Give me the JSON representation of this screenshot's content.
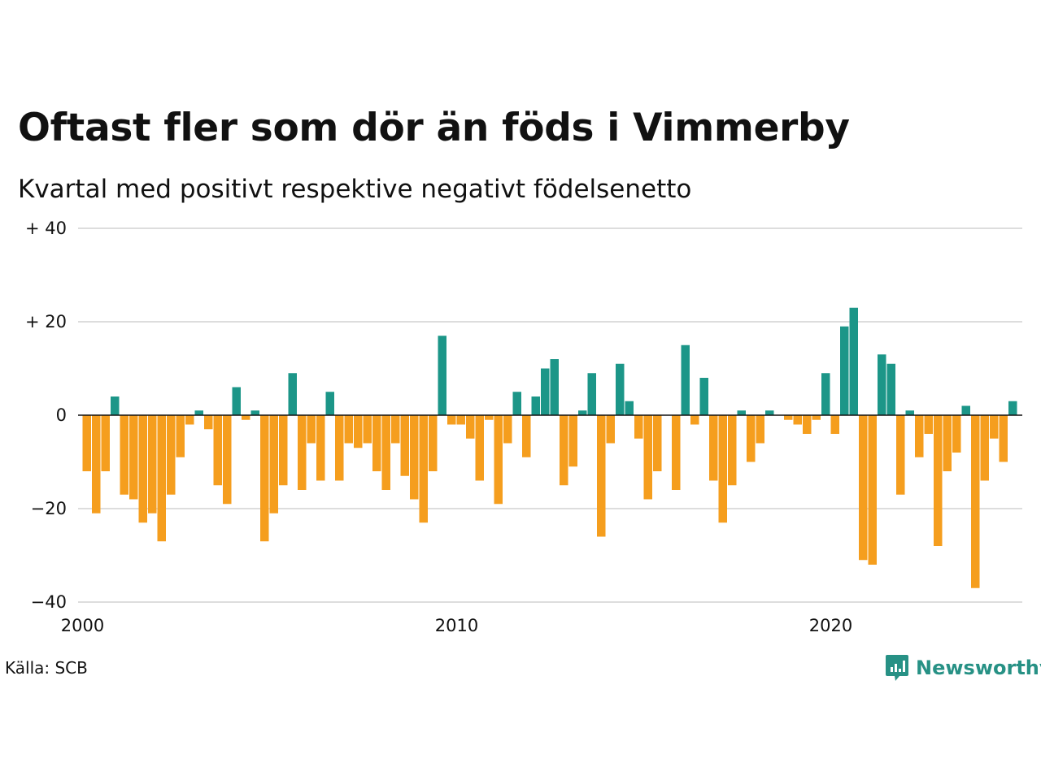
{
  "header": {
    "title": "Oftast fler som dör än föds i Vimmerby",
    "subtitle": "Kvartal med positivt respektive negativt födelsenetto"
  },
  "footer": {
    "source": "Källa: SCB",
    "brand": "Newsworthy"
  },
  "colors": {
    "positive": "#1c9688",
    "negative": "#f59e1e",
    "brand": "#279185",
    "grid": "#dddddd"
  },
  "chart_data": {
    "type": "bar",
    "x_start": "2000Q1",
    "ylim": [
      -40,
      40
    ],
    "yticks": [
      {
        "value": 40,
        "label": "+ 40"
      },
      {
        "value": 20,
        "label": "+ 20"
      },
      {
        "value": 0,
        "label": "0"
      },
      {
        "value": -20,
        "label": "−20"
      },
      {
        "value": -40,
        "label": "−40"
      }
    ],
    "xticks": [
      {
        "year": 2000,
        "label": "2000"
      },
      {
        "year": 2010,
        "label": "2010"
      },
      {
        "year": 2020,
        "label": "2020"
      }
    ],
    "grid": true,
    "values": [
      -12,
      -21,
      -12,
      4,
      -17,
      -18,
      -23,
      -21,
      -27,
      -17,
      -9,
      -2,
      1,
      -3,
      -15,
      -19,
      6,
      -1,
      1,
      -27,
      -21,
      -15,
      9,
      -16,
      -6,
      -14,
      5,
      -14,
      -6,
      -7,
      -6,
      -12,
      -16,
      -6,
      -13,
      -18,
      -23,
      -12,
      17,
      -2,
      -2,
      -5,
      -14,
      -1,
      -19,
      -6,
      5,
      -9,
      4,
      10,
      12,
      -15,
      -11,
      1,
      9,
      -26,
      -6,
      11,
      3,
      -5,
      -18,
      -12,
      0,
      -16,
      15,
      -2,
      8,
      -14,
      -23,
      -15,
      1,
      -10,
      -6,
      1,
      0,
      -1,
      -2,
      -4,
      -1,
      9,
      -4,
      19,
      23,
      -31,
      -32,
      13,
      11,
      -17,
      1,
      -9,
      -4,
      -28,
      -12,
      -8,
      2,
      -37,
      -14,
      -5,
      -10,
      3
    ]
  }
}
